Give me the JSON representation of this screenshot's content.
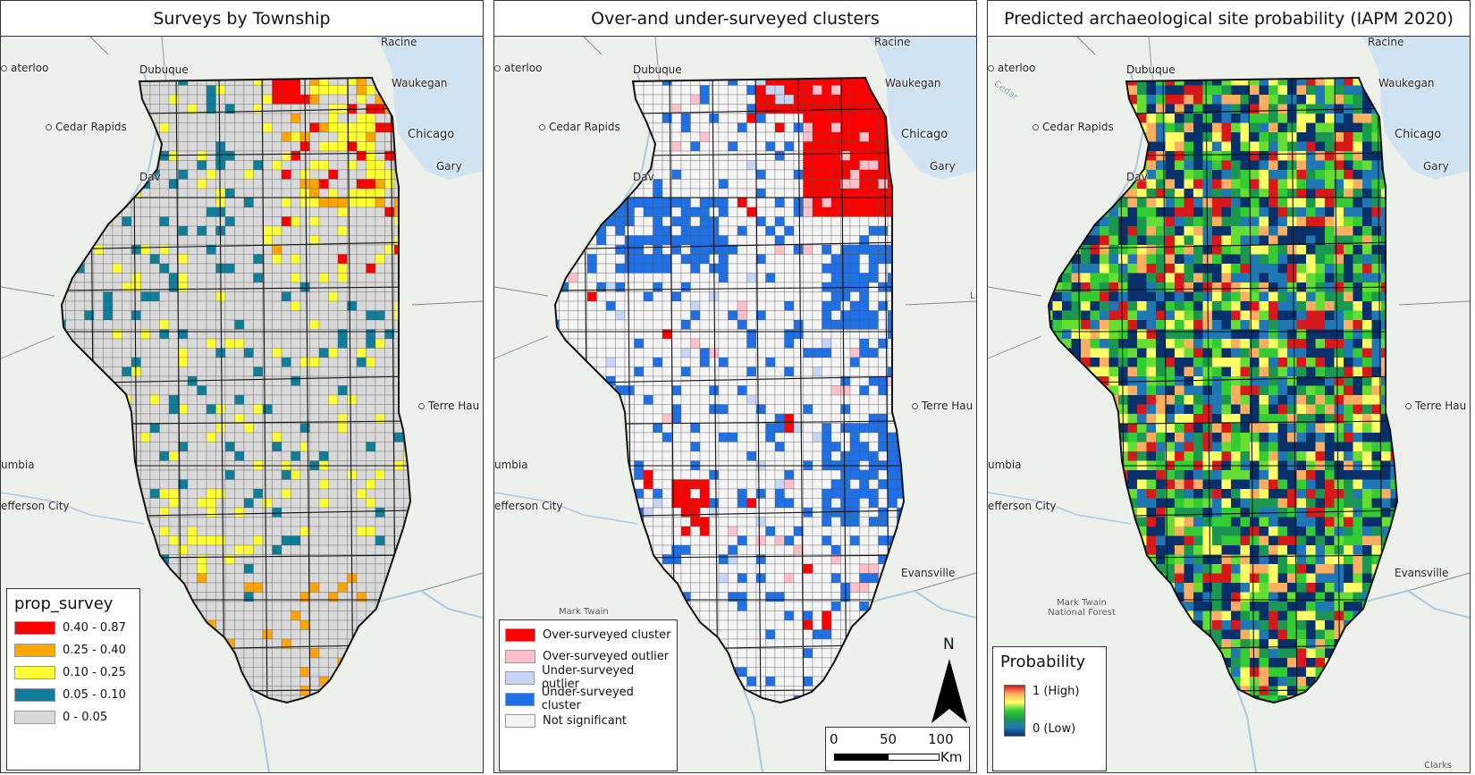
{
  "panels": [
    {
      "id": "surveys",
      "title": "Surveys by Township",
      "legend": {
        "title": "prop_survey",
        "entries": [
          {
            "label": "0.40 - 0.87",
            "color": "#ff0000"
          },
          {
            "label": "0.25 - 0.40",
            "color": "#ffa500"
          },
          {
            "label": "0.10 - 0.25",
            "color": "#ffff33"
          },
          {
            "label": "0.05 - 0.10",
            "color": "#0e7e9b"
          },
          {
            "label": "0 - 0.05",
            "color": "#d9d9d9"
          }
        ]
      }
    },
    {
      "id": "clusters",
      "title": "Over-and under-surveyed clusters",
      "legend": {
        "entries": [
          {
            "label": "Over-surveyed cluster",
            "color": "#ff0000"
          },
          {
            "label": "Over-surveyed outlier",
            "color": "#ffc0cb"
          },
          {
            "label": "Under-surveyed outlier",
            "color": "#c6d4f5"
          },
          {
            "label": "Under-surveyed cluster",
            "color": "#1f6fe5"
          },
          {
            "label": "Not significant",
            "color": "#f4f4f4"
          }
        ]
      },
      "north_label": "N",
      "scale": {
        "ticks": [
          "0",
          "50",
          "100"
        ],
        "unit": "Km"
      }
    },
    {
      "id": "probability",
      "title": "Predicted archaeological site probability (IAPM 2020)",
      "legend": {
        "title": "Probability",
        "high": "1 (High)",
        "low": "0 (Low)"
      }
    }
  ],
  "place_labels": {
    "waterloo": "aterloo",
    "dubuque": "Dubuque",
    "racine": "Racine",
    "waukegan": "Waukegan",
    "cedar_rapids": "Cedar Rapids",
    "chicago": "Chicago",
    "gary": "Gary",
    "davenport": "Dav",
    "terre_haute": "Terre Hau",
    "columbia": "umbia",
    "jefferson_city": "efferson City",
    "evansville": "Evansville",
    "mark_twain": "Mark Twain",
    "mark_twain_nf": "Mark Twain National Forest",
    "cedar_river": "Cedar",
    "clarks": "Clarks",
    "edge_l": "L"
  },
  "colors": {
    "over_cluster": "#ff0000",
    "over_outlier": "#ffc0cb",
    "under_outlier": "#c6d4f5",
    "under_cluster": "#1f6fe5",
    "not_significant": "#f4f4f4",
    "low_survey": "#d9d9d9",
    "water": "#cfe3f3",
    "land": "#eef0ec"
  }
}
